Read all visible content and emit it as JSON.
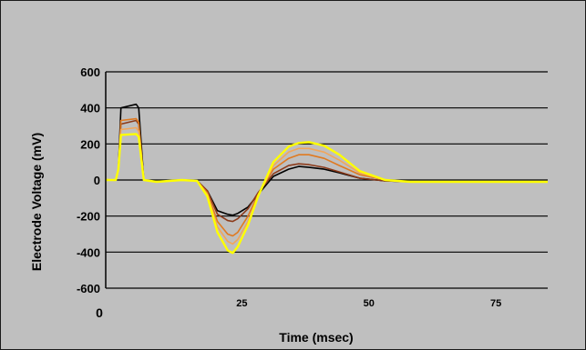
{
  "chart_data": {
    "type": "line",
    "xlabel": "Time (msec)",
    "ylabel": "Electrode Voltage (mV)",
    "ylim": [
      -600,
      600
    ],
    "xlim": [
      0,
      87
    ],
    "y_ticks": [
      600,
      400,
      200,
      0,
      -200,
      -400,
      -600
    ],
    "x_ticks": [
      0,
      25,
      50,
      75
    ],
    "grid": "horizontal",
    "legend": "none",
    "colors": {
      "background": "#bfbfbf",
      "gridline": "#000000",
      "series": [
        "#000000",
        "#8b3a1a",
        "#e07a20",
        "#f2a65a",
        "#ffff00"
      ]
    },
    "series": [
      {
        "x": [
          0,
          2,
          2.5,
          3,
          6,
          6.5,
          7.5,
          10,
          15,
          18,
          20,
          22,
          24,
          25,
          26,
          28,
          30,
          33,
          36,
          38,
          40,
          43,
          46,
          50,
          55,
          60,
          70,
          80,
          87
        ],
        "values": [
          0,
          0,
          60,
          400,
          420,
          400,
          0,
          -10,
          0,
          -5,
          -60,
          -170,
          -190,
          -195,
          -185,
          -150,
          -80,
          20,
          60,
          75,
          70,
          60,
          40,
          10,
          -5,
          -10,
          -10,
          -10,
          -10
        ]
      },
      {
        "x": [
          0,
          2,
          2.5,
          3,
          6,
          6.5,
          7.5,
          10,
          15,
          18,
          20,
          22,
          24,
          25,
          26,
          28,
          30,
          33,
          36,
          38,
          40,
          43,
          46,
          50,
          55,
          60,
          70,
          80,
          87
        ],
        "values": [
          0,
          0,
          60,
          310,
          330,
          310,
          0,
          -10,
          0,
          -5,
          -60,
          -190,
          -225,
          -230,
          -215,
          -160,
          -70,
          35,
          80,
          90,
          85,
          70,
          45,
          10,
          -5,
          -10,
          -10,
          -10,
          -10
        ]
      },
      {
        "x": [
          0,
          2,
          2.5,
          3,
          6,
          6.5,
          7.5,
          10,
          15,
          18,
          20,
          22,
          24,
          25,
          26,
          28,
          30,
          33,
          36,
          38,
          40,
          43,
          46,
          50,
          55,
          60,
          70,
          80,
          87
        ],
        "values": [
          0,
          0,
          60,
          330,
          340,
          320,
          0,
          -10,
          0,
          -5,
          -70,
          -230,
          -300,
          -310,
          -290,
          -200,
          -80,
          60,
          120,
          140,
          140,
          120,
          80,
          30,
          0,
          -10,
          -10,
          -10,
          -10
        ]
      },
      {
        "x": [
          0,
          2,
          2.5,
          3,
          6,
          6.5,
          7.5,
          10,
          15,
          18,
          20,
          22,
          24,
          25,
          26,
          28,
          30,
          33,
          36,
          38,
          40,
          43,
          46,
          50,
          55,
          60,
          70,
          80,
          87
        ],
        "values": [
          0,
          0,
          60,
          280,
          290,
          270,
          0,
          -10,
          0,
          -5,
          -80,
          -260,
          -340,
          -355,
          -330,
          -230,
          -90,
          80,
          155,
          175,
          175,
          155,
          110,
          40,
          0,
          -10,
          -10,
          -10,
          -10
        ]
      },
      {
        "x": [
          0,
          2,
          2.5,
          3,
          6,
          6.5,
          7.5,
          10,
          15,
          18,
          20,
          22,
          24,
          25,
          26,
          28,
          30,
          33,
          36,
          38,
          40,
          43,
          46,
          50,
          55,
          60,
          70,
          80,
          87
        ],
        "values": [
          0,
          0,
          60,
          250,
          255,
          240,
          0,
          -10,
          0,
          -5,
          -90,
          -290,
          -390,
          -405,
          -370,
          -250,
          -90,
          100,
          185,
          205,
          210,
          190,
          140,
          50,
          0,
          -10,
          -10,
          -10,
          -10
        ]
      }
    ]
  }
}
